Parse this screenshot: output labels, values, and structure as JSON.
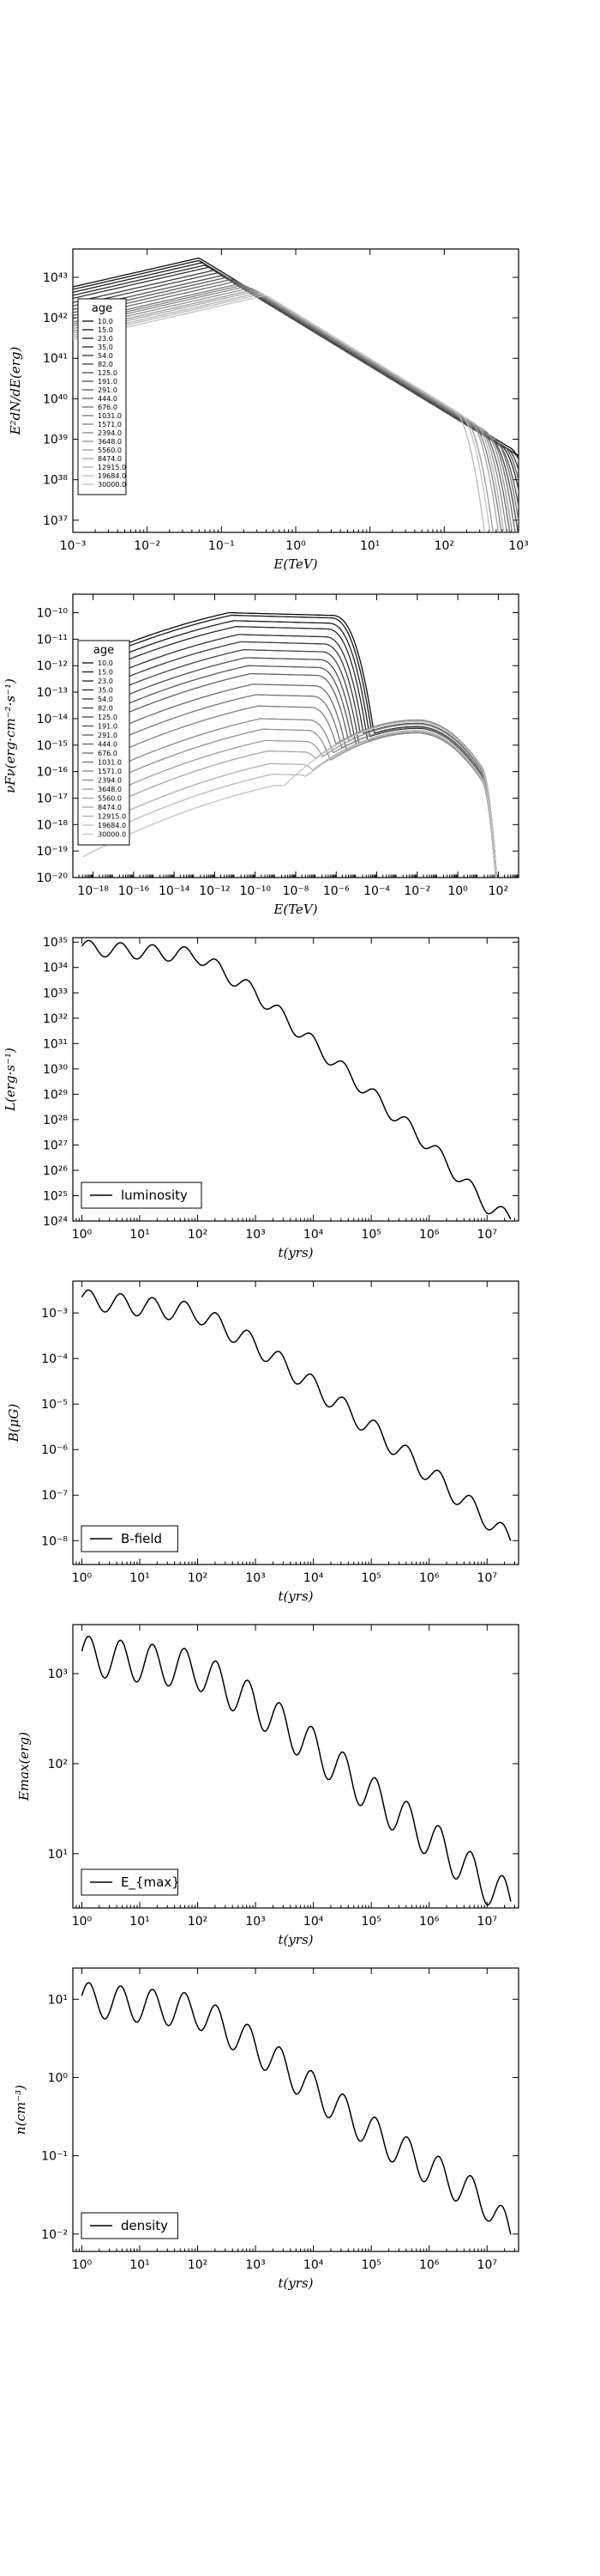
{
  "chart_data": [
    {
      "type": "line",
      "xlabel": "E(TeV)",
      "ylabel": "E²dN/dE(erg)",
      "xscale": "log",
      "yscale": "log",
      "xlim": [
        0.001,
        1000
      ],
      "ylim": [
        5e+36,
        5e+43
      ],
      "xticks": [
        "10⁻³",
        "10⁻²",
        "10⁻¹",
        "10⁰",
        "10¹",
        "10²",
        "10³"
      ],
      "yticks": [
        "10³⁷",
        "10³⁸",
        "10³⁹",
        "10⁴⁰",
        "10⁴¹",
        "10⁴²",
        "10⁴³"
      ],
      "legend": {
        "title": "age",
        "placement": "left"
      },
      "series": [
        {
          "name": "10.0",
          "peak_x": 0.05,
          "peak_y": 3e+43
        },
        {
          "name": "15.0",
          "peak_x": 0.05,
          "peak_y": 2.6e+43
        },
        {
          "name": "23.0",
          "peak_x": 0.055,
          "peak_y": 2.3e+43
        },
        {
          "name": "35.0",
          "peak_x": 0.06,
          "peak_y": 2e+43
        },
        {
          "name": "54.0",
          "peak_x": 0.07,
          "peak_y": 1.8e+43
        },
        {
          "name": "82.0",
          "peak_x": 0.08,
          "peak_y": 1.5e+43
        },
        {
          "name": "125.0",
          "peak_x": 0.09,
          "peak_y": 1.3e+43
        },
        {
          "name": "191.0",
          "peak_x": 0.1,
          "peak_y": 1.1e+43
        },
        {
          "name": "291.0",
          "peak_x": 0.12,
          "peak_y": 1e+43
        },
        {
          "name": "444.0",
          "peak_x": 0.14,
          "peak_y": 9e+42
        },
        {
          "name": "676.0",
          "peak_x": 0.16,
          "peak_y": 8e+42
        },
        {
          "name": "1031.0",
          "peak_x": 0.18,
          "peak_y": 7e+42
        },
        {
          "name": "1571.0",
          "peak_x": 0.2,
          "peak_y": 6.5e+42
        },
        {
          "name": "2394.0",
          "peak_x": 0.22,
          "peak_y": 6e+42
        },
        {
          "name": "3648.0",
          "peak_x": 0.25,
          "peak_y": 5.5e+42
        },
        {
          "name": "5560.0",
          "peak_x": 0.28,
          "peak_y": 5e+42
        },
        {
          "name": "8474.0",
          "peak_x": 0.3,
          "peak_y": 4.6e+42
        },
        {
          "name": "12915.0",
          "peak_x": 0.33,
          "peak_y": 4.2e+42
        },
        {
          "name": "19684.0",
          "peak_x": 0.36,
          "peak_y": 3.9e+42
        },
        {
          "name": "30000.0",
          "peak_x": 0.4,
          "peak_y": 3.6e+42
        }
      ]
    },
    {
      "type": "line",
      "xlabel": "E(TeV)",
      "ylabel": "νFν(erg·cm⁻²·s⁻¹)",
      "xscale": "log",
      "yscale": "log",
      "xlim": [
        1e-19,
        1000
      ],
      "ylim": [
        1e-20,
        5e-10
      ],
      "xticks": [
        "10⁻¹⁸",
        "10⁻¹⁶",
        "10⁻¹⁴",
        "10⁻¹²",
        "10⁻¹⁰",
        "10⁻⁸",
        "10⁻⁶",
        "10⁻⁴",
        "10⁻²",
        "10⁰",
        "10²"
      ],
      "yticks": [
        "10⁻²⁰",
        "10⁻¹⁹",
        "10⁻¹⁸",
        "10⁻¹⁷",
        "10⁻¹⁶",
        "10⁻¹⁵",
        "10⁻¹⁴",
        "10⁻¹³",
        "10⁻¹²",
        "10⁻¹¹",
        "10⁻¹⁰"
      ],
      "legend": {
        "title": "age",
        "placement": "left"
      },
      "series_names": [
        "10.0",
        "15.0",
        "23.0",
        "35.0",
        "54.0",
        "82.0",
        "125.0",
        "191.0",
        "291.0",
        "444.0",
        "676.0",
        "1031.0",
        "1571.0",
        "2394.0",
        "3648.0",
        "5560.0",
        "8474.0",
        "12915.0",
        "19684.0",
        "30000.0"
      ],
      "synchrotron_peaks_y": [
        1e-10,
        8e-11,
        5e-11,
        3e-11,
        1.5e-11,
        8e-12,
        4e-12,
        2e-12,
        1e-12,
        5e-13,
        2e-13,
        8e-14,
        3e-14,
        1e-14,
        4e-15,
        1.5e-15,
        6e-16,
        2e-16,
        8e-17,
        3e-17
      ],
      "ic_peak": {
        "x": 0.01,
        "y": 5e-15
      }
    },
    {
      "type": "line",
      "xlabel": "t(yrs)",
      "ylabel": "L(erg·s⁻¹)",
      "xscale": "log",
      "yscale": "log",
      "xlim": [
        0.7,
        35000000.0
      ],
      "ylim": [
        1e+24,
        1.5e+35
      ],
      "xticks": [
        "10⁰",
        "10¹",
        "10²",
        "10³",
        "10⁴",
        "10⁵",
        "10⁶",
        "10⁷"
      ],
      "yticks": [
        "10²⁴",
        "10²⁵",
        "10²⁶",
        "10²⁷",
        "10²⁸",
        "10²⁹",
        "10³⁰",
        "10³¹",
        "10³²",
        "10³³",
        "10³⁴",
        "10³⁵"
      ],
      "legend": {
        "label": "luminosity",
        "placement": "lower-left"
      },
      "series": [
        {
          "name": "luminosity",
          "x": [
            1,
            100.0,
            1000.0,
            10000.0,
            100000.0,
            1000000.0,
            10000000.0,
            25000000.0
          ],
          "y": [
            6e+34,
            3e+34,
            1e+33,
            1e+31,
            1e+29,
            1e+27,
            4e+24,
            1.2e+24
          ]
        }
      ],
      "oscillation": {
        "amplitude_dex": 0.3,
        "period_dex": 0.55
      }
    },
    {
      "type": "line",
      "xlabel": "t(yrs)",
      "ylabel": "B(μG)",
      "xscale": "log",
      "yscale": "log",
      "xlim": [
        0.7,
        35000000.0
      ],
      "ylim": [
        3e-09,
        0.005
      ],
      "xticks": [
        "10⁰",
        "10¹",
        "10²",
        "10³",
        "10⁴",
        "10⁵",
        "10⁶",
        "10⁷"
      ],
      "yticks": [
        "10⁻⁸",
        "10⁻⁷",
        "10⁻⁶",
        "10⁻⁵",
        "10⁻⁴",
        "10⁻³"
      ],
      "legend": {
        "label": "B-field",
        "placement": "lower-left"
      },
      "series": [
        {
          "name": "B-field",
          "x": [
            1,
            100.0,
            1000.0,
            10000.0,
            100000.0,
            1000000.0,
            10000000.0,
            25000000.0
          ],
          "y": [
            0.002,
            0.001,
            0.0002,
            2.5e-05,
            3e-06,
            3e-07,
            3e-08,
            1e-08
          ]
        }
      ],
      "oscillation": {
        "amplitude_dex": 0.22,
        "period_dex": 0.55
      }
    },
    {
      "type": "line",
      "xlabel": "t(yrs)",
      "ylabel": "Emax(erg)",
      "xscale": "log",
      "yscale": "log",
      "xlim": [
        0.7,
        35000000.0
      ],
      "ylim": [
        2.5,
        3500
      ],
      "xticks": [
        "10⁰",
        "10¹",
        "10²",
        "10³",
        "10⁴",
        "10⁵",
        "10⁶",
        "10⁷"
      ],
      "yticks": [
        "10¹",
        "10²",
        "10³"
      ],
      "legend": {
        "label": "E_{max}",
        "placement": "lower-left"
      },
      "series": [
        {
          "name": "E_{max}",
          "x": [
            1,
            100.0,
            1000.0,
            10000.0,
            100000.0,
            1000000.0,
            10000000.0,
            25000000.0
          ],
          "y": [
            1600,
            1100,
            450,
            150,
            45,
            15,
            4.5,
            3
          ]
        }
      ],
      "oscillation": {
        "amplitude_dex": 0.22,
        "period_dex": 0.55
      }
    },
    {
      "type": "line",
      "xlabel": "t(yrs)",
      "ylabel": "n(cm⁻³)",
      "xscale": "log",
      "yscale": "log",
      "xlim": [
        0.7,
        35000000.0
      ],
      "ylim": [
        0.006,
        25
      ],
      "xticks": [
        "10⁰",
        "10¹",
        "10²",
        "10³",
        "10⁴",
        "10⁵",
        "10⁶",
        "10⁷"
      ],
      "yticks": [
        "10⁻²",
        "10⁻¹",
        "10⁰",
        "10¹"
      ],
      "legend": {
        "label": "density",
        "placement": "lower-left"
      },
      "series": [
        {
          "name": "density",
          "x": [
            1,
            100.0,
            1000.0,
            10000.0,
            100000.0,
            1000000.0,
            10000000.0,
            25000000.0
          ],
          "y": [
            10,
            7,
            2.5,
            0.7,
            0.2,
            0.07,
            0.025,
            0.01
          ]
        }
      ],
      "oscillation": {
        "amplitude_dex": 0.22,
        "period_dex": 0.55
      }
    }
  ]
}
